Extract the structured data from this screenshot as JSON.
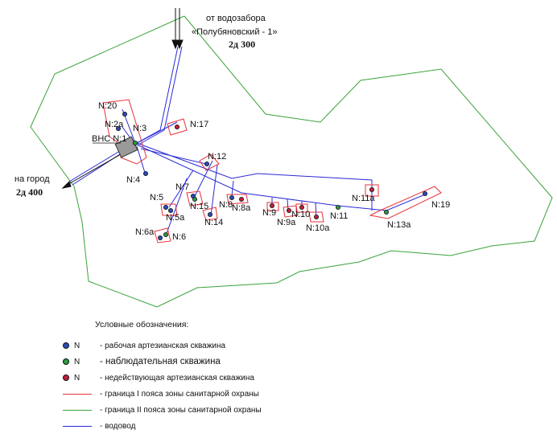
{
  "colors": {
    "zone1": "#e8303a",
    "zone2": "#3aa23a",
    "water": "#2a2ad8",
    "working_well": "#2a4db8",
    "observation_well": "#2e9a3e",
    "inactive_well": "#c0203a",
    "station": "#9a9a9a"
  },
  "annotations": {
    "source_line1": "от водозабора",
    "source_line2": "«Полубяновский - 1»",
    "source_pipe": "2д 300",
    "city_line1": "на город",
    "city_pipe": "2д 400",
    "station": "ВНС N:1"
  },
  "wells": [
    {
      "id": "N:20",
      "label": "N:20",
      "status": "working"
    },
    {
      "id": "N:2a",
      "label": "N:2a",
      "status": "working"
    },
    {
      "id": "N:3",
      "label": "N:3",
      "status": "observation"
    },
    {
      "id": "N:17",
      "label": "N:17",
      "status": "inactive"
    },
    {
      "id": "N:4",
      "label": "N:4",
      "status": "working"
    },
    {
      "id": "N:12",
      "label": "N:12",
      "status": "working"
    },
    {
      "id": "N:7",
      "label": "N:7",
      "status": "working"
    },
    {
      "id": "N:5",
      "label": "N:5",
      "status": "working"
    },
    {
      "id": "N:5a",
      "label": "N:5a",
      "status": "working"
    },
    {
      "id": "N:15",
      "label": "N:15",
      "status": "observation"
    },
    {
      "id": "N:14",
      "label": "N:14",
      "status": "working"
    },
    {
      "id": "N:8",
      "label": "N:8",
      "status": "working"
    },
    {
      "id": "N:8a",
      "label": "N:8a",
      "status": "inactive"
    },
    {
      "id": "N:9",
      "label": "N:9",
      "status": "inactive"
    },
    {
      "id": "N:9a",
      "label": "N:9a",
      "status": "inactive"
    },
    {
      "id": "N:10",
      "label": "N:10",
      "status": "inactive"
    },
    {
      "id": "N:10a",
      "label": "N:10a",
      "status": "inactive"
    },
    {
      "id": "N:11",
      "label": "N:11",
      "status": "observation"
    },
    {
      "id": "N:11a",
      "label": "N:11a",
      "status": "inactive"
    },
    {
      "id": "N:13a",
      "label": "N:13a",
      "status": "observation"
    },
    {
      "id": "N:19",
      "label": "N:19",
      "status": "working"
    },
    {
      "id": "N:6a",
      "label": "N:6a",
      "status": "working"
    },
    {
      "id": "N:6",
      "label": "N:6",
      "status": "observation"
    }
  ],
  "legend": {
    "title": "Условные обозначения:",
    "items": [
      {
        "symbol": "N",
        "text": "- рабочая артезианская скважина"
      },
      {
        "symbol": "N",
        "text": "- наблюдательная скважина"
      },
      {
        "symbol": "N",
        "text": "- недействующая артезианская скважина"
      },
      {
        "symbol": "",
        "text": "- граница I пояса зоны санитарной охраны"
      },
      {
        "symbol": "",
        "text": "- граница II пояса зоны санитарной охраны"
      },
      {
        "symbol": "",
        "text": "- водовод"
      }
    ]
  }
}
